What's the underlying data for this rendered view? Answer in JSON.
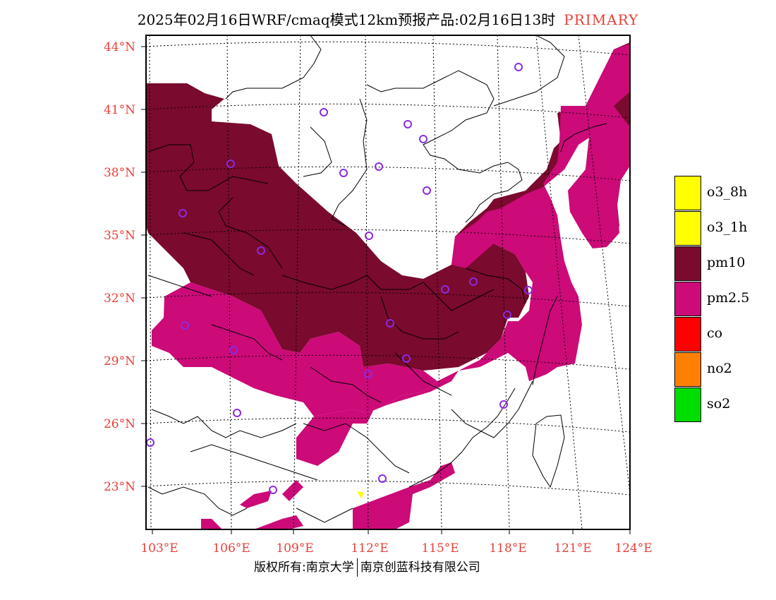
{
  "title": {
    "text": "2025年02月16日WRF/cmaq模式12km预报产品:02月16日13时",
    "tag": "PRIMARY",
    "tag_color": "#e8403a"
  },
  "axes": {
    "lat_ticks": [
      "44°N",
      "41°N",
      "38°N",
      "35°N",
      "32°N",
      "29°N",
      "26°N",
      "23°N"
    ],
    "lon_ticks": [
      "103°E",
      "106°E",
      "109°E",
      "112°E",
      "115°E",
      "118°E",
      "121°E",
      "124°E"
    ]
  },
  "legend": [
    {
      "label": "o3_8h",
      "color": "#ffff00"
    },
    {
      "label": "o3_1h",
      "color": "#ffff00"
    },
    {
      "label": "pm10",
      "color": "#7a0a2e"
    },
    {
      "label": "pm2.5",
      "color": "#cc0a78"
    },
    {
      "label": "co",
      "color": "#ff0000"
    },
    {
      "label": "no2",
      "color": "#ff7f00"
    },
    {
      "label": "so2",
      "color": "#00dd00"
    }
  ],
  "footer": {
    "left": "版权所有:南京大学",
    "right": "南京创蓝科技有限公司"
  },
  "colors": {
    "pm10": "#7a0a2e",
    "pm25": "#cc0a78",
    "o3": "#ffff00",
    "city_marker": "#8a2be2",
    "axis_label": "#e8403a"
  }
}
